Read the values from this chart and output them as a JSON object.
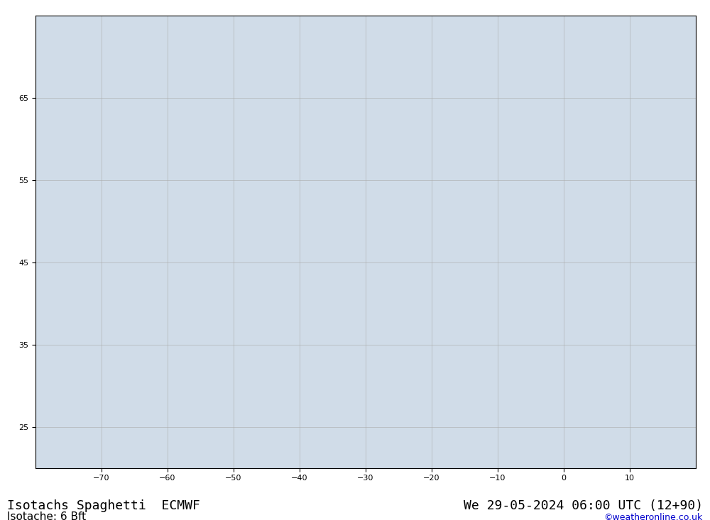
{
  "title_left": "Isotachs Spaghetti  ECMWF",
  "title_right": "We 29-05-2024 06:00 UTC (12+90)",
  "subtitle": "Isotache: 6 Bft",
  "credit": "©weatheronline.co.uk",
  "background_ocean": "#d8e8f0",
  "background_land": "#c8e8a0",
  "background_figure": "#ffffff",
  "grid_color": "#aaaaaa",
  "coastline_color": "#555555",
  "border_color": "#555555",
  "lon_min": -80,
  "lon_max": 20,
  "lat_min": 20,
  "lat_max": 75,
  "lon_ticks": [
    -70,
    -60,
    -50,
    -40,
    -30,
    -20,
    -10,
    0,
    10
  ],
  "lat_ticks": [
    25,
    35,
    45,
    55,
    65
  ],
  "title_fontsize": 13,
  "subtitle_fontsize": 11,
  "credit_fontsize": 9,
  "tick_fontsize": 8,
  "bottom_bar_color": "#e8e8e8",
  "spaghetti_colors": [
    "#808080",
    "#ff0000",
    "#0000ff",
    "#00aa00",
    "#ff8800",
    "#aa00aa",
    "#00aaaa",
    "#ffff00",
    "#ff00ff",
    "#00ff00",
    "#884400",
    "#0088ff",
    "#ff4444",
    "#4444ff",
    "#44ff44"
  ],
  "num_members": 50,
  "contour_value": 6
}
